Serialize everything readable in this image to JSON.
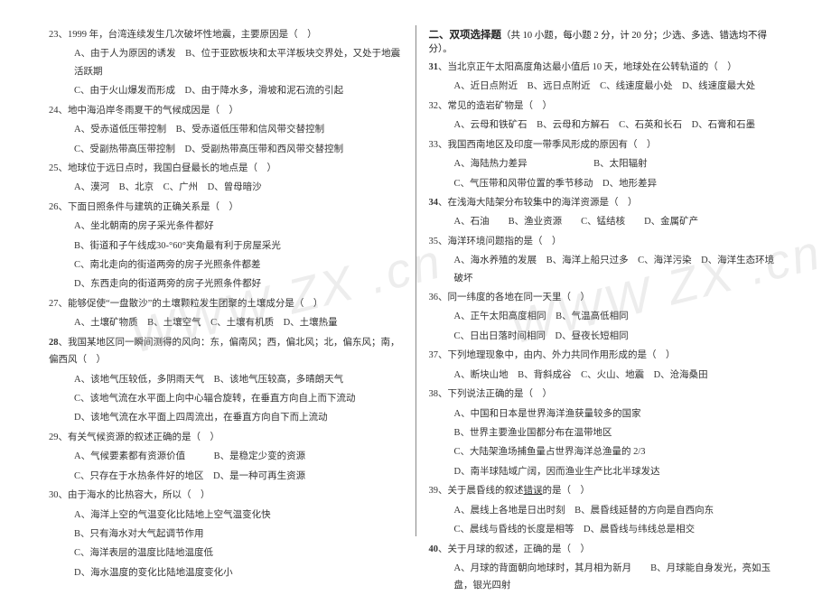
{
  "watermark": {
    "text": "WWW ZX .cn"
  },
  "left": {
    "questions": [
      {
        "n": "23",
        "stem": "、1999 年，台湾连续发生几次破坏性地震，主要原因是（　）",
        "opts": [
          "A、由于人为原因的诱发　B、位于亚欧板块和太平洋板块交界处，又处于地震活跃期",
          "C、由于火山爆发而形成　D、由于降水多，滑坡和泥石流的引起"
        ]
      },
      {
        "n": "24",
        "stem": "、地中海沿岸冬雨夏干的气候成因是（　）",
        "opts": [
          "A、受赤道低压带控制　B、受赤道低压带和信风带交替控制",
          "C、受副热带高压带控制　D、受副热带高压带和西风带交替控制"
        ]
      },
      {
        "n": "25",
        "stem": "、地球位于远日点时，我国白昼最长的地点是（　）",
        "opts": [
          "A、漠河　B、北京　C、广州　D、曾母暗沙"
        ]
      },
      {
        "n": "26",
        "stem": "、下面日照条件与建筑的正确关系是（　）",
        "opts": [
          "A、坐北朝南的房子采光条件都好",
          "B、街道和子午线成30-°60°夹角最有利于房屋采光",
          "C、南北走向的街道两旁的房子光照条件都差",
          "D、东西走向的街道两旁的房子光照条件都好"
        ]
      },
      {
        "n": "27",
        "stem": "、能够促使“一盘散沙”的土壤颗粒发生团聚的土壤成分是（　）",
        "opts": [
          "A、土壤矿物质　B、土壤空气　C、土壤有机质　D、土壤热量"
        ]
      },
      {
        "n": "28",
        "bold": true,
        "stem": "、我国某地区同一瞬间测得的风向：东，偏南风；西，偏北风；北，偏东风；南，偏西风（　）",
        "opts": [
          "A、该地气压较低，多阴雨天气　B、该地气压较高，多晴朗天气",
          "C、该地气流在水平面上向中心辐合旋转，在垂直方向自上而下流动",
          "D、该地气流在水平面上四周流出，在垂直方向自下而上流动"
        ]
      },
      {
        "n": "29",
        "stem": "、有关气候资源的叙述正确的是（　）",
        "opts": [
          "A、气候要素都有资源价值　　　B、是稳定少变的资源",
          "C、只存在于水热条件好的地区　D、是一种可再生资源"
        ]
      },
      {
        "n": "30",
        "stem": "、由于海水的比热容大，所以（　）",
        "opts": [
          "A、海洋上空的气温变化比陆地上空气温变化快",
          "B、只有海水对大气起调节作用",
          "C、海洋表层的温度比陆地温度低",
          "D、海水温度的变化比陆地温度变化小"
        ]
      }
    ]
  },
  "right": {
    "section": "二、双项选择题",
    "section_note": "（共 10 小题，每小题 2 分，计 20 分；少选、多选、错选均不得分）。",
    "questions": [
      {
        "n": "31",
        "bold": true,
        "stem": "、当北京正午太阳高度角达最小值后 10 天，地球处在公转轨道的（　）",
        "opts": [
          "A、近日点附近　B、远日点附近　C、线速度最小处　D、线速度最大处"
        ]
      },
      {
        "n": "32",
        "stem": "、常见的造岩矿物是（　）",
        "opts": [
          "A、云母和铁矿石　B、云母和方解石　C、石英和长石　D、石膏和石墨"
        ]
      },
      {
        "n": "33",
        "stem": "、我国西南地区及印度一带季风形成的原因有（　）",
        "opts": [
          "A、海陆热力差异　　　　　　　B、太阳辐射",
          "C、气压带和风带位置的季节移动　D、地形差异"
        ]
      },
      {
        "n": "34",
        "bold": true,
        "stem": "、在浅海大陆架分布较集中的海洋资源是（　）",
        "opts": [
          "A、石油　　B、渔业资源　　C、锰结核　　D、金属矿产"
        ]
      },
      {
        "n": "35",
        "stem": "、海洋环境问题指的是（　）",
        "opts": [
          "A、海水养殖的发展　B、海洋上船只过多　C、海洋污染　D、海洋生态环境破坏"
        ]
      },
      {
        "n": "36",
        "stem": "、同一纬度的各地在同一天里（　）",
        "opts": [
          "A、正午太阳高度相同　B、气温高低相同",
          "C、日出日落时间相同　D、昼夜长短相同"
        ]
      },
      {
        "n": "37",
        "stem": "、下列地理现象中，由内、外力共同作用形成的是（　）",
        "opts": [
          "A、断块山地　B、背斜成谷　C、火山、地震　D、沧海桑田"
        ]
      },
      {
        "n": "38",
        "stem": "、下列说法正确的是（　）",
        "opts": [
          "A、中国和日本是世界海洋渔获量较多的国家",
          "B、世界主要渔业国都分布在温带地区",
          "C、大陆架渔场捕鱼量占世界海洋总渔量的 2/3",
          "D、南半球陆域广阔，因而渔业生产比北半球发达"
        ]
      },
      {
        "n": "39",
        "stem": "、关于晨昏线的叙述",
        "stemU": "错误",
        "stem2": "的是（　）",
        "opts": [
          "A、晨线上各地是日出时刻　B、晨昏线延替的方向是自西向东",
          "C、晨线与昏线的长度是相等　D、晨昏线与纬线总是相交"
        ]
      },
      {
        "n": "40",
        "bold": true,
        "stem": "、关于月球的叙述，正确的是（　）",
        "opts": [
          "A、月球的背面朝向地球时，其月相为新月　　B、月球能自身发光，亮如玉盘，银光四射"
        ]
      }
    ]
  }
}
